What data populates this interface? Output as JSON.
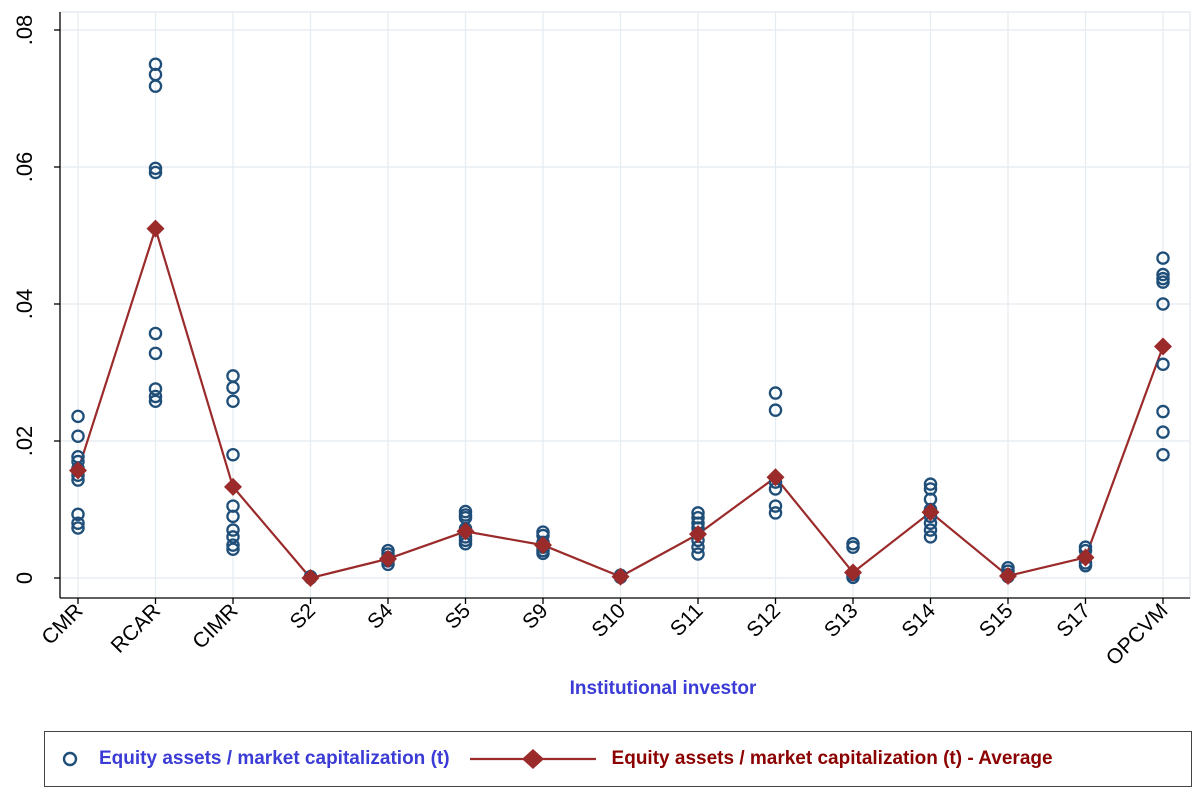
{
  "chart_data": {
    "type": "scatter",
    "xlabel": "Institutional investor",
    "ylabel": "",
    "ylim": [
      0,
      0.08
    ],
    "yticks": [
      0,
      0.02,
      0.04,
      0.06,
      0.08
    ],
    "ytick_labels": [
      "0",
      ".02",
      ".04",
      ".06",
      ".08"
    ],
    "grid": true,
    "categories": [
      "CMR",
      "RCAR",
      "CIMR",
      "S2",
      "S4",
      "S5",
      "S9",
      "S10",
      "S11",
      "S12",
      "S13",
      "S14",
      "S15",
      "S17",
      "OPCVM"
    ],
    "series": [
      {
        "name": "Equity assets / market capitalization (t)",
        "marker": "hollow-circle",
        "color": "#1f4e79",
        "points": [
          [
            0.0236,
            0.0207,
            0.0177,
            0.017,
            0.016,
            0.015,
            0.0143,
            0.0093,
            0.008,
            0.0073
          ],
          [
            0.075,
            0.0735,
            0.0718,
            0.0598,
            0.0592,
            0.0357,
            0.0328,
            0.0276,
            0.0265,
            0.0258
          ],
          [
            0.0295,
            0.0278,
            0.0258,
            0.018,
            0.0105,
            0.009,
            0.007,
            0.006,
            0.0048,
            0.0042
          ],
          [
            0.0002,
            0.0001,
            0.0
          ],
          [
            0.004,
            0.0035,
            0.003,
            0.0025,
            0.002
          ],
          [
            0.0097,
            0.0092,
            0.0088,
            0.0072,
            0.006,
            0.0055,
            0.005
          ],
          [
            0.0067,
            0.0062,
            0.0052,
            0.0045,
            0.004,
            0.0036
          ],
          [
            0.0004,
            0.0002,
            0.0001
          ],
          [
            0.0095,
            0.0088,
            0.008,
            0.0073,
            0.0065,
            0.0055,
            0.0045,
            0.0035
          ],
          [
            0.027,
            0.0245,
            0.014,
            0.013,
            0.0105,
            0.0095
          ],
          [
            0.005,
            0.0045,
            0.0005,
            0.0001
          ],
          [
            0.0137,
            0.013,
            0.0115,
            0.01,
            0.009,
            0.008,
            0.007,
            0.006
          ],
          [
            0.0015,
            0.001,
            0.0005,
            0.0002
          ],
          [
            0.0045,
            0.004,
            0.003,
            0.0022,
            0.0018
          ],
          [
            0.0467,
            0.0443,
            0.0437,
            0.0432,
            0.04,
            0.0312,
            0.0243,
            0.0213,
            0.018
          ]
        ]
      },
      {
        "name": "Equity assets / market capitalization (t) - Average",
        "marker": "diamond",
        "line": true,
        "color": "#9b2b2b",
        "values": [
          0.0157,
          0.051,
          0.0133,
          0.0,
          0.0028,
          0.0068,
          0.0048,
          0.0002,
          0.0064,
          0.0147,
          0.0008,
          0.0096,
          0.0003,
          0.003,
          0.0338
        ]
      }
    ],
    "legend": {
      "position": "bottom",
      "items": [
        {
          "label": "Equity assets / market capitalization (t)",
          "text_color": "#3b3bd6"
        },
        {
          "label": "Equity assets / market capitalization (t) - Average",
          "text_color": "#8b0000"
        }
      ]
    },
    "xlabel_color": "#3b3bd6"
  }
}
